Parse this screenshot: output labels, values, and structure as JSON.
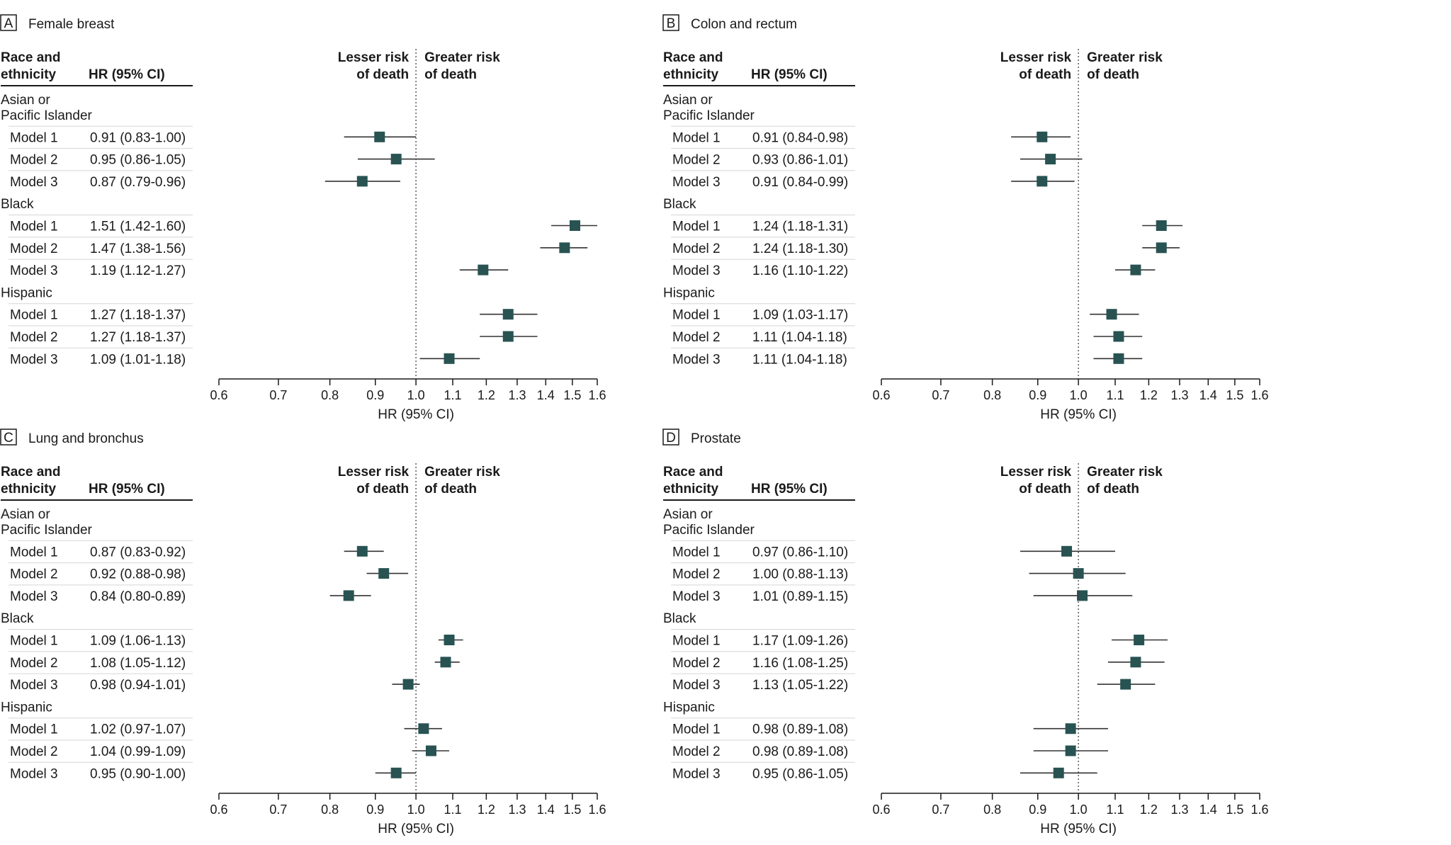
{
  "header": {
    "race_line1": "Race and",
    "race_line2": "ethnicity",
    "hr_col": "HR (95% CI)",
    "lesser_line1": "Lesser risk",
    "lesser_line2": "of death",
    "greater_line1": "Greater risk",
    "greater_line2": "of death"
  },
  "colors": {
    "marker": "#285352",
    "line": "#333333",
    "rule": "#1a1a1a",
    "row_sep": "#d5d5d5"
  },
  "chart_data": [
    {
      "type": "forest",
      "panel": "A",
      "title": "Female breast",
      "xlabel": "HR (95% CI)",
      "scale": "log",
      "xlim": [
        0.6,
        1.6
      ],
      "ticks": [
        0.6,
        0.7,
        0.8,
        0.9,
        1.0,
        1.1,
        1.2,
        1.3,
        1.4,
        1.5,
        1.6
      ],
      "tick_labels": [
        "0.6",
        "0.7",
        "0.8",
        "0.9",
        "1.0",
        "1.1",
        "1.2",
        "1.3",
        "1.4",
        "1.5",
        "1.6"
      ],
      "reference": 1.0,
      "groups": [
        {
          "name_lines": [
            "Asian or",
            "Pacific Islander"
          ],
          "rows": [
            {
              "label": "Model 1",
              "text": "0.91 (0.83-1.00)",
              "hr": 0.91,
              "lo": 0.83,
              "hi": 1.0
            },
            {
              "label": "Model 2",
              "text": "0.95 (0.86-1.05)",
              "hr": 0.95,
              "lo": 0.86,
              "hi": 1.05
            },
            {
              "label": "Model 3",
              "text": "0.87 (0.79-0.96)",
              "hr": 0.87,
              "lo": 0.79,
              "hi": 0.96
            }
          ]
        },
        {
          "name_lines": [
            "Black"
          ],
          "rows": [
            {
              "label": "Model 1",
              "text": "1.51 (1.42-1.60)",
              "hr": 1.51,
              "lo": 1.42,
              "hi": 1.6
            },
            {
              "label": "Model 2",
              "text": "1.47 (1.38-1.56)",
              "hr": 1.47,
              "lo": 1.38,
              "hi": 1.56
            },
            {
              "label": "Model 3",
              "text": "1.19 (1.12-1.27)",
              "hr": 1.19,
              "lo": 1.12,
              "hi": 1.27
            }
          ]
        },
        {
          "name_lines": [
            "Hispanic"
          ],
          "rows": [
            {
              "label": "Model 1",
              "text": "1.27 (1.18-1.37)",
              "hr": 1.27,
              "lo": 1.18,
              "hi": 1.37
            },
            {
              "label": "Model 2",
              "text": "1.27 (1.18-1.37)",
              "hr": 1.27,
              "lo": 1.18,
              "hi": 1.37
            },
            {
              "label": "Model 3",
              "text": "1.09 (1.01-1.18)",
              "hr": 1.09,
              "lo": 1.01,
              "hi": 1.18
            }
          ]
        }
      ]
    },
    {
      "type": "forest",
      "panel": "B",
      "title": "Colon and rectum",
      "xlabel": "HR (95% CI)",
      "scale": "log",
      "xlim": [
        0.6,
        1.6
      ],
      "ticks": [
        0.6,
        0.7,
        0.8,
        0.9,
        1.0,
        1.1,
        1.2,
        1.3,
        1.4,
        1.5,
        1.6
      ],
      "tick_labels": [
        "0.6",
        "0.7",
        "0.8",
        "0.9",
        "1.0",
        "1.1",
        "1.2",
        "1.3",
        "1.4",
        "1.5",
        "1.6"
      ],
      "reference": 1.0,
      "groups": [
        {
          "name_lines": [
            "Asian or",
            "Pacific Islander"
          ],
          "rows": [
            {
              "label": "Model 1",
              "text": "0.91 (0.84-0.98)",
              "hr": 0.91,
              "lo": 0.84,
              "hi": 0.98
            },
            {
              "label": "Model 2",
              "text": "0.93 (0.86-1.01)",
              "hr": 0.93,
              "lo": 0.86,
              "hi": 1.01
            },
            {
              "label": "Model 3",
              "text": "0.91 (0.84-0.99)",
              "hr": 0.91,
              "lo": 0.84,
              "hi": 0.99
            }
          ]
        },
        {
          "name_lines": [
            "Black"
          ],
          "rows": [
            {
              "label": "Model 1",
              "text": "1.24 (1.18-1.31)",
              "hr": 1.24,
              "lo": 1.18,
              "hi": 1.31
            },
            {
              "label": "Model 2",
              "text": "1.24 (1.18-1.30)",
              "hr": 1.24,
              "lo": 1.18,
              "hi": 1.3
            },
            {
              "label": "Model 3",
              "text": "1.16 (1.10-1.22)",
              "hr": 1.16,
              "lo": 1.1,
              "hi": 1.22
            }
          ]
        },
        {
          "name_lines": [
            "Hispanic"
          ],
          "rows": [
            {
              "label": "Model 1",
              "text": "1.09 (1.03-1.17)",
              "hr": 1.09,
              "lo": 1.03,
              "hi": 1.17
            },
            {
              "label": "Model 2",
              "text": "1.11 (1.04-1.18)",
              "hr": 1.11,
              "lo": 1.04,
              "hi": 1.18
            },
            {
              "label": "Model 3",
              "text": "1.11 (1.04-1.18)",
              "hr": 1.11,
              "lo": 1.04,
              "hi": 1.18
            }
          ]
        }
      ]
    },
    {
      "type": "forest",
      "panel": "C",
      "title": "Lung and bronchus",
      "xlabel": "HR (95% CI)",
      "scale": "log",
      "xlim": [
        0.6,
        1.6
      ],
      "ticks": [
        0.6,
        0.7,
        0.8,
        0.9,
        1.0,
        1.1,
        1.2,
        1.3,
        1.4,
        1.5,
        1.6
      ],
      "tick_labels": [
        "0.6",
        "0.7",
        "0.8",
        "0.9",
        "1.0",
        "1.1",
        "1.2",
        "1.3",
        "1.4",
        "1.5",
        "1.6"
      ],
      "reference": 1.0,
      "groups": [
        {
          "name_lines": [
            "Asian or",
            "Pacific Islander"
          ],
          "rows": [
            {
              "label": "Model 1",
              "text": "0.87 (0.83-0.92)",
              "hr": 0.87,
              "lo": 0.83,
              "hi": 0.92
            },
            {
              "label": "Model 2",
              "text": "0.92 (0.88-0.98)",
              "hr": 0.92,
              "lo": 0.88,
              "hi": 0.98
            },
            {
              "label": "Model 3",
              "text": "0.84 (0.80-0.89)",
              "hr": 0.84,
              "lo": 0.8,
              "hi": 0.89
            }
          ]
        },
        {
          "name_lines": [
            "Black"
          ],
          "rows": [
            {
              "label": "Model 1",
              "text": "1.09 (1.06-1.13)",
              "hr": 1.09,
              "lo": 1.06,
              "hi": 1.13
            },
            {
              "label": "Model 2",
              "text": "1.08 (1.05-1.12)",
              "hr": 1.08,
              "lo": 1.05,
              "hi": 1.12
            },
            {
              "label": "Model 3",
              "text": "0.98 (0.94-1.01)",
              "hr": 0.98,
              "lo": 0.94,
              "hi": 1.01
            }
          ]
        },
        {
          "name_lines": [
            "Hispanic"
          ],
          "rows": [
            {
              "label": "Model 1",
              "text": "1.02 (0.97-1.07)",
              "hr": 1.02,
              "lo": 0.97,
              "hi": 1.07
            },
            {
              "label": "Model 2",
              "text": "1.04 (0.99-1.09)",
              "hr": 1.04,
              "lo": 0.99,
              "hi": 1.09
            },
            {
              "label": "Model 3",
              "text": "0.95 (0.90-1.00)",
              "hr": 0.95,
              "lo": 0.9,
              "hi": 1.0
            }
          ]
        }
      ]
    },
    {
      "type": "forest",
      "panel": "D",
      "title": "Prostate",
      "xlabel": "HR (95% CI)",
      "scale": "log",
      "xlim": [
        0.6,
        1.6
      ],
      "ticks": [
        0.6,
        0.7,
        0.8,
        0.9,
        1.0,
        1.1,
        1.2,
        1.3,
        1.4,
        1.5,
        1.6
      ],
      "tick_labels": [
        "0.6",
        "0.7",
        "0.8",
        "0.9",
        "1.0",
        "1.1",
        "1.2",
        "1.3",
        "1.4",
        "1.5",
        "1.6"
      ],
      "reference": 1.0,
      "groups": [
        {
          "name_lines": [
            "Asian or",
            "Pacific Islander"
          ],
          "rows": [
            {
              "label": "Model 1",
              "text": "0.97 (0.86-1.10)",
              "hr": 0.97,
              "lo": 0.86,
              "hi": 1.1
            },
            {
              "label": "Model 2",
              "text": "1.00 (0.88-1.13)",
              "hr": 1.0,
              "lo": 0.88,
              "hi": 1.13
            },
            {
              "label": "Model 3",
              "text": "1.01 (0.89-1.15)",
              "hr": 1.01,
              "lo": 0.89,
              "hi": 1.15
            }
          ]
        },
        {
          "name_lines": [
            "Black"
          ],
          "rows": [
            {
              "label": "Model 1",
              "text": "1.17 (1.09-1.26)",
              "hr": 1.17,
              "lo": 1.09,
              "hi": 1.26
            },
            {
              "label": "Model 2",
              "text": "1.16 (1.08-1.25)",
              "hr": 1.16,
              "lo": 1.08,
              "hi": 1.25
            },
            {
              "label": "Model 3",
              "text": "1.13 (1.05-1.22)",
              "hr": 1.13,
              "lo": 1.05,
              "hi": 1.22
            }
          ]
        },
        {
          "name_lines": [
            "Hispanic"
          ],
          "rows": [
            {
              "label": "Model 1",
              "text": "0.98 (0.89-1.08)",
              "hr": 0.98,
              "lo": 0.89,
              "hi": 1.08
            },
            {
              "label": "Model 2",
              "text": "0.98 (0.89-1.08)",
              "hr": 0.98,
              "lo": 0.89,
              "hi": 1.08
            },
            {
              "label": "Model 3",
              "text": "0.95 (0.86-1.05)",
              "hr": 0.95,
              "lo": 0.86,
              "hi": 1.05
            }
          ]
        }
      ]
    }
  ]
}
